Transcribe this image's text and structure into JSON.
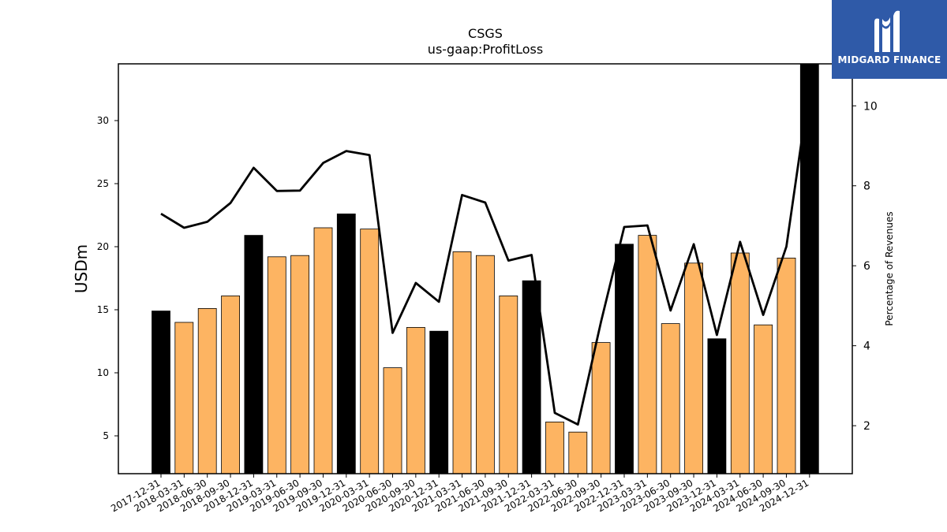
{
  "chart_data": {
    "type": "bar",
    "title": "CSGS",
    "subtitle": "us-gaap:ProfitLoss",
    "ylabel": "USDm",
    "y2label": "Percentage of Revenues",
    "ylim": [
      2,
      34.5
    ],
    "y2lim": [
      0.8,
      11.05
    ],
    "yticks": [
      5,
      10,
      15,
      20,
      25,
      30
    ],
    "y2ticks": [
      2,
      4,
      6,
      8,
      10
    ],
    "categories": [
      "2017-12-31",
      "2018-03-31",
      "2018-06-30",
      "2018-09-30",
      "2018-12-31",
      "2019-03-31",
      "2019-06-30",
      "2019-09-30",
      "2019-12-31",
      "2020-03-31",
      "2020-06-30",
      "2020-09-30",
      "2020-12-31",
      "2021-03-31",
      "2021-06-30",
      "2021-09-30",
      "2021-12-31",
      "2022-03-31",
      "2022-06-30",
      "2022-09-30",
      "2022-12-31",
      "2023-03-31",
      "2023-06-30",
      "2023-09-30",
      "2023-12-31",
      "2024-03-31",
      "2024-06-30",
      "2024-09-30",
      "2024-12-31"
    ],
    "values": [
      14.9,
      14.0,
      15.1,
      16.1,
      20.9,
      19.2,
      19.3,
      21.5,
      22.6,
      21.4,
      10.4,
      13.6,
      13.3,
      19.6,
      19.3,
      16.1,
      17.3,
      6.1,
      5.3,
      12.4,
      20.2,
      20.9,
      13.9,
      18.7,
      12.7,
      19.5,
      13.8,
      19.1,
      34.5
    ],
    "bar_kinds": [
      "annual",
      "quarter",
      "quarter",
      "quarter",
      "annual",
      "quarter",
      "quarter",
      "quarter",
      "annual",
      "quarter",
      "quarter",
      "quarter",
      "annual",
      "quarter",
      "quarter",
      "quarter",
      "annual",
      "quarter",
      "quarter",
      "quarter",
      "annual",
      "quarter",
      "quarter",
      "quarter",
      "annual",
      "quarter",
      "quarter",
      "quarter",
      "annual"
    ],
    "line": {
      "axis": "right",
      "values": [
        7.3,
        6.95,
        7.1,
        7.57,
        8.45,
        7.87,
        7.88,
        8.57,
        8.87,
        8.77,
        4.32,
        5.57,
        5.1,
        7.77,
        7.58,
        6.13,
        6.27,
        2.32,
        2.03,
        4.6,
        6.97,
        7.01,
        4.88,
        6.54,
        4.27,
        6.6,
        4.77,
        6.48,
        10.5
      ]
    },
    "colors": {
      "annual": "#000000",
      "quarter": "#fdb462",
      "line": "#000000"
    },
    "grid": false
  },
  "logo": {
    "text": "MIDGARD FINANCE"
  }
}
